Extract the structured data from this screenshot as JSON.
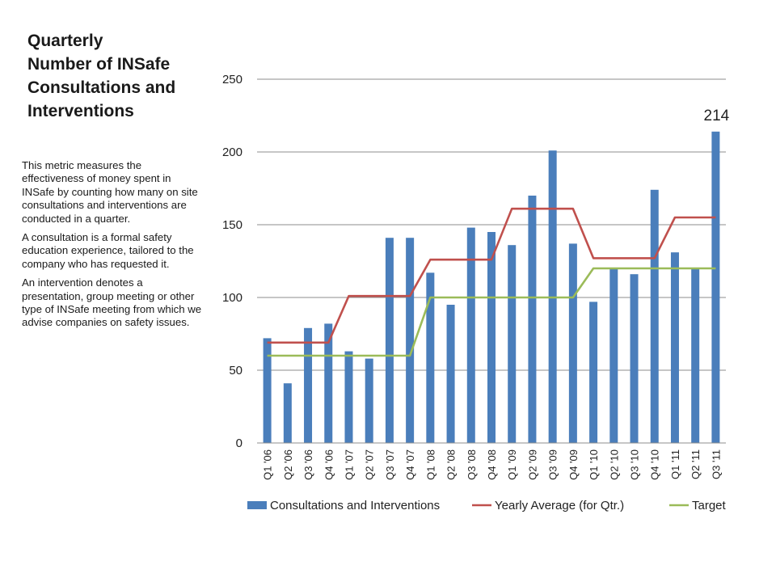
{
  "page": {
    "title_lines": [
      "Quarterly",
      "Number of INSafe",
      "Consultations and",
      "Interventions"
    ],
    "description": [
      "This  metric measures  the effectiveness of money spent in INSafe by counting how many on site consultations  and interventions are conducted in a quarter.",
      "A consultation is a formal safety education experience, tailored to the company who has requested  it.",
      "An intervention denotes a presentation, group meeting or other type of INSafe meeting from which we advise companies on safety issues."
    ]
  },
  "chart_data": {
    "type": "bar",
    "categories": [
      "Q1 '06",
      "Q2 '06",
      "Q3 '06",
      "Q4 '06",
      "Q1 '07",
      "Q2 '07",
      "Q3 '07",
      "Q4 '07",
      "Q1 '08",
      "Q2 '08",
      "Q3 '08",
      "Q4 '08",
      "Q1 '09",
      "Q2 '09",
      "Q3 '09",
      "Q4 '09",
      "Q1 '10",
      "Q2 '10",
      "Q3 '10",
      "Q4 '10",
      "Q1 '11",
      "Q2 '11",
      "Q3 '11"
    ],
    "series": [
      {
        "name": "Consultations and Interventions",
        "type": "bar",
        "color": "#4a7ebb",
        "values": [
          72,
          41,
          79,
          82,
          63,
          58,
          141,
          141,
          117,
          95,
          148,
          145,
          136,
          170,
          201,
          137,
          97,
          120,
          116,
          174,
          131,
          120,
          214
        ]
      },
      {
        "name": "Yearly Average (for Qtr.)",
        "type": "line",
        "color": "#c0504d",
        "values": [
          69,
          69,
          69,
          69,
          101,
          101,
          101,
          101,
          126,
          126,
          126,
          126,
          161,
          161,
          161,
          161,
          127,
          127,
          127,
          127,
          155,
          155,
          155
        ]
      },
      {
        "name": "Target",
        "type": "line",
        "color": "#9bbb59",
        "values": [
          60,
          60,
          60,
          60,
          60,
          60,
          60,
          60,
          100,
          100,
          100,
          100,
          100,
          100,
          100,
          100,
          120,
          120,
          120,
          120,
          120,
          120,
          120
        ]
      }
    ],
    "ylim": [
      0,
      250
    ],
    "yticks": [
      0,
      50,
      100,
      150,
      200,
      250
    ],
    "grid": true,
    "legend": "bottom",
    "annotation": {
      "text": "214",
      "category_index": 22
    }
  }
}
